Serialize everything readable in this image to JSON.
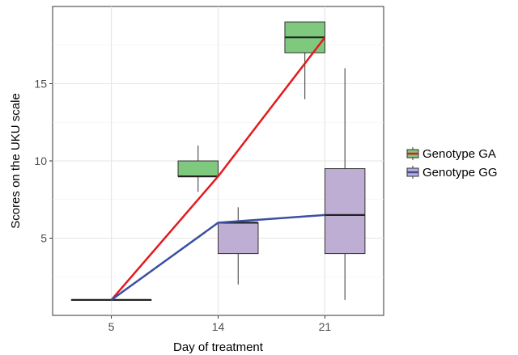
{
  "chart_data": {
    "type": "box",
    "title": "",
    "xlabel": "Day of treatment",
    "ylabel": "Scores on the UKU scale",
    "categories": [
      "5",
      "14",
      "21"
    ],
    "x_range": [
      0.45,
      3.55
    ],
    "ylim": [
      0,
      20
    ],
    "y_ticks": [
      5,
      10,
      15
    ],
    "grid": true,
    "legend_position": "right",
    "series": [
      {
        "name": "Genotype GA",
        "fill_color": "#7fc97f",
        "line_color": "#e41a1c",
        "boxes": [
          {
            "category": "5",
            "min": 1,
            "q1": 1,
            "median": 1,
            "q3": 1,
            "max": 1
          },
          {
            "category": "14",
            "min": 8,
            "q1": 9,
            "median": 9,
            "q3": 10,
            "max": 11
          },
          {
            "category": "21",
            "min": 14,
            "q1": 17,
            "median": 18,
            "q3": 19,
            "max": 19
          }
        ],
        "mean_line": [
          1,
          9,
          18
        ]
      },
      {
        "name": "Genotype GG",
        "fill_color": "#beaed4",
        "line_color": "#3a4fa3",
        "boxes": [
          {
            "category": "5",
            "min": 1,
            "q1": 1,
            "median": 1,
            "q3": 1,
            "max": 1
          },
          {
            "category": "14",
            "min": 2,
            "q1": 4,
            "median": 6,
            "q3": 6,
            "max": 7
          },
          {
            "category": "21",
            "min": 1,
            "q1": 4,
            "median": 6.5,
            "q3": 9.5,
            "max": 16
          }
        ],
        "mean_line": [
          1,
          6,
          6.5
        ]
      }
    ]
  }
}
